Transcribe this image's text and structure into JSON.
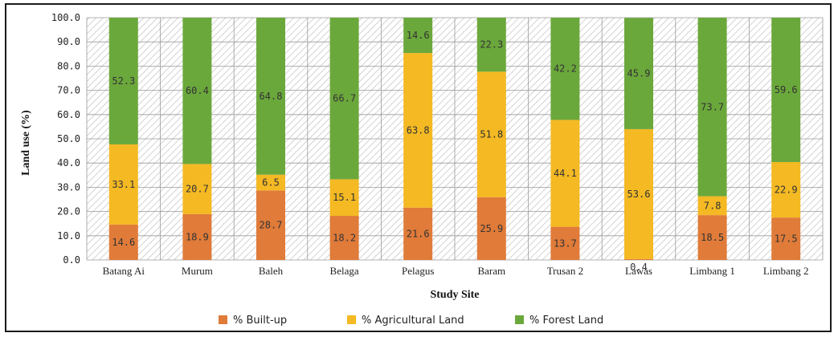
{
  "chart_data": {
    "type": "bar",
    "stacked": true,
    "categories": [
      "Batang Ai",
      "Murum",
      "Baleh",
      "Belaga",
      "Pelagus",
      "Baram",
      "Trusan 2",
      "Lawas",
      "Limbang 1",
      "Limbang 2"
    ],
    "series": [
      {
        "name": "% Built-up",
        "color": "#e07b39",
        "values": [
          14.6,
          18.9,
          28.7,
          18.2,
          21.6,
          25.9,
          13.7,
          0.4,
          18.5,
          17.5
        ]
      },
      {
        "name": "% Agricultural Land",
        "color": "#f4b923",
        "values": [
          33.1,
          20.7,
          6.5,
          15.1,
          63.8,
          51.8,
          44.1,
          53.6,
          7.8,
          22.9
        ]
      },
      {
        "name": "% Forest Land",
        "color": "#6ba83c",
        "values": [
          52.3,
          60.4,
          64.8,
          66.7,
          14.6,
          22.3,
          42.2,
          45.9,
          73.7,
          59.6
        ]
      }
    ],
    "xlabel": "Study Site",
    "ylabel": "Land use (%)",
    "ylim": [
      0,
      100
    ],
    "yticks": [
      "0.0",
      "10.0",
      "20.0",
      "30.0",
      "40.0",
      "50.0",
      "60.0",
      "70.0",
      "80.0",
      "90.0",
      "100.0"
    ],
    "grid": true,
    "background": "hatched",
    "legend_position": "bottom"
  }
}
